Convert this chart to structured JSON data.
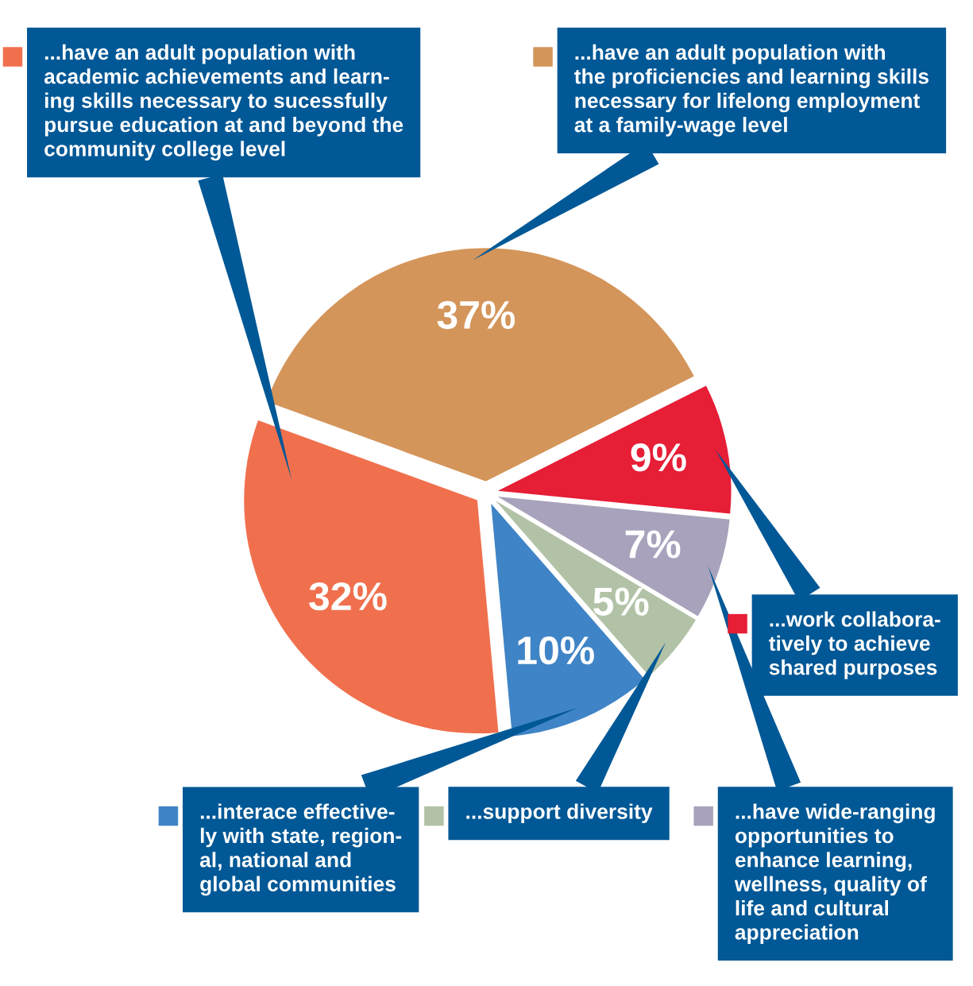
{
  "chart_data": {
    "type": "pie",
    "categories": [
      "...have an adult population with\nthe proficiencies and learning skills\nnecessary for lifelong employment\nat a family-wage level",
      "...work collabora-\ntively to achieve\nshared purposes",
      "...have wide-ranging\nopportunities to\nenhance learning,\nwellness, quality of\nlife and cultural\nappreciation",
      "...support diversity",
      "...interace effective-\nly with state, region-\nal, national and\nglobal communities",
      "...have an adult population with\nacademic achievements and learn-\ning skills necessary to sucessfully\npursue education at and beyond the\ncommunity college level"
    ],
    "values": [
      37,
      9,
      7,
      5,
      10,
      32
    ],
    "colors": [
      "#d4955a",
      "#e61e36",
      "#a8a2bc",
      "#b2c2a6",
      "#3f84c6",
      "#f0704e"
    ],
    "value_labels": [
      "37%",
      "9%",
      "7%",
      "5%",
      "10%",
      "32%"
    ],
    "legend": "bottom"
  }
}
